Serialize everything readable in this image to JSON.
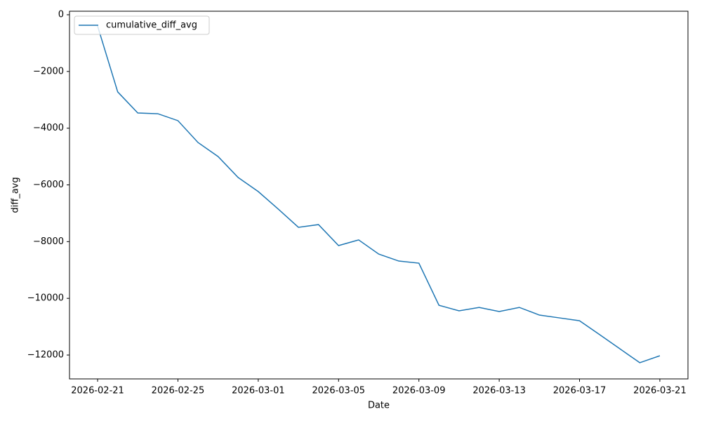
{
  "chart_data": {
    "type": "line",
    "x_label": "Date",
    "y_label": "diff_avg",
    "x": [
      "2026-02-21",
      "2026-02-22",
      "2026-02-23",
      "2026-02-24",
      "2026-02-25",
      "2026-02-26",
      "2026-02-27",
      "2026-02-28",
      "2026-03-01",
      "2026-03-02",
      "2026-03-03",
      "2026-03-04",
      "2026-03-05",
      "2026-03-06",
      "2026-03-07",
      "2026-03-08",
      "2026-03-09",
      "2026-03-10",
      "2026-03-11",
      "2026-03-12",
      "2026-03-13",
      "2026-03-14",
      "2026-03-15",
      "2026-03-16",
      "2026-03-17",
      "2026-03-18",
      "2026-03-19",
      "2026-03-20",
      "2026-03-21"
    ],
    "series": [
      {
        "name": "cumulative_diff_avg",
        "color": "#1f77b4",
        "values": [
          -400,
          -2720,
          -3465,
          -3490,
          -3735,
          -4505,
          -5000,
          -5740,
          -6235,
          -6855,
          -7495,
          -7400,
          -8140,
          -7940,
          -8440,
          -8685,
          -8760,
          -10245,
          -10440,
          -10320,
          -10465,
          -10320,
          -10590,
          -10690,
          -10790,
          -11280,
          -11775,
          -12270,
          -12025
        ]
      }
    ],
    "xlim": [
      "2026-02-19T14:24",
      "2026-03-22T09:36"
    ],
    "xticks": [
      "2026-02-21",
      "2026-02-25",
      "2026-03-01",
      "2026-03-05",
      "2026-03-09",
      "2026-03-13",
      "2026-03-17",
      "2026-03-21"
    ],
    "ylim": [
      -12841,
      124
    ],
    "yticks": [
      0,
      {
        "value": -2000,
        "label": "−2000"
      },
      {
        "value": -4000,
        "label": "−4000"
      },
      {
        "value": -6000,
        "label": "−6000"
      },
      {
        "value": -8000,
        "label": "−8000"
      },
      {
        "value": -10000,
        "label": "−10000"
      },
      {
        "value": -12000,
        "label": "−12000"
      }
    ],
    "grid": false,
    "legend": "upper left"
  }
}
